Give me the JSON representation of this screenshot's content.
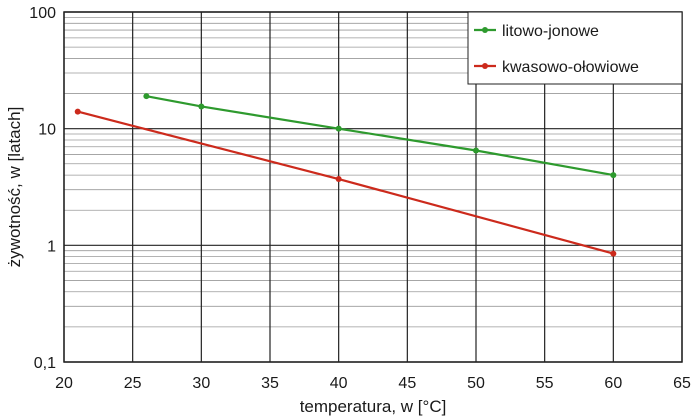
{
  "chart_data": {
    "type": "line",
    "xlabel": "temperatura, w [°C]",
    "ylabel": "żywotność, w [latach]",
    "xlim": [
      20,
      65
    ],
    "ylim": [
      0.1,
      100
    ],
    "y_scale": "log",
    "x_ticks": [
      "20",
      "25",
      "30",
      "35",
      "40",
      "45",
      "50",
      "55",
      "60",
      "65"
    ],
    "y_ticks": [
      {
        "value": 0.1,
        "label": "0,1"
      },
      {
        "value": 1,
        "label": "1"
      },
      {
        "value": 10,
        "label": "10"
      },
      {
        "value": 100,
        "label": "100"
      }
    ],
    "grid": true,
    "legend_position": "top-right",
    "series": [
      {
        "name": "litowo-jonowe",
        "color": "#2e9a2e",
        "points": [
          [
            26,
            19
          ],
          [
            30,
            15.5
          ],
          [
            40,
            10
          ],
          [
            50,
            6.5
          ],
          [
            60,
            4
          ]
        ]
      },
      {
        "name": "kwasowo-ołowiowe",
        "color": "#cc2a1c",
        "points": [
          [
            21,
            14
          ],
          [
            40,
            3.7
          ],
          [
            60,
            0.85
          ]
        ]
      }
    ]
  }
}
